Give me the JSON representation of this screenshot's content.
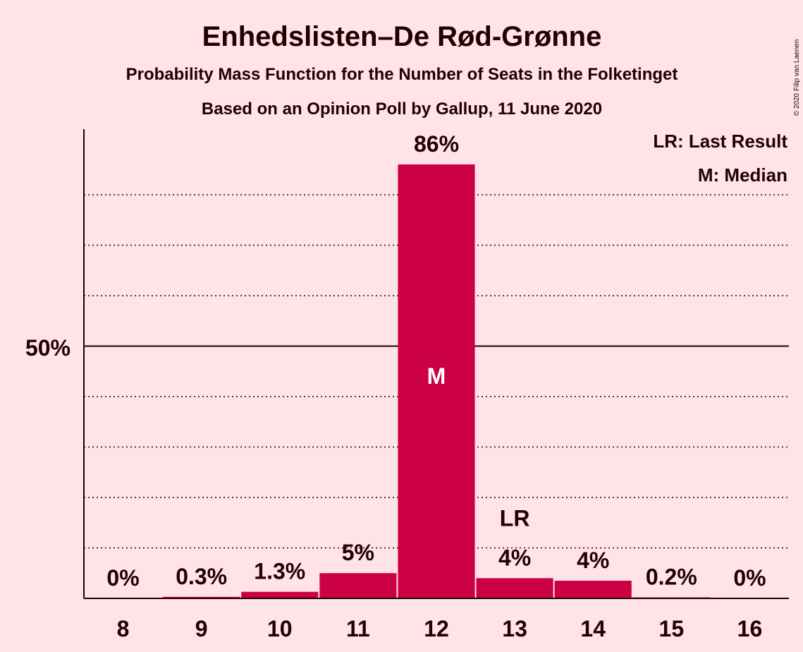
{
  "chart_data": {
    "type": "bar",
    "title": "Enhedslisten–De Rød-Grønne",
    "subtitle": "Probability Mass Function for the Number of Seats in the Folketinget",
    "subtitle2": "Based on an Opinion Poll by Gallup, 11 June 2020",
    "categories": [
      "8",
      "9",
      "10",
      "11",
      "12",
      "13",
      "14",
      "15",
      "16"
    ],
    "values": [
      0,
      0.3,
      1.3,
      5,
      86,
      4,
      3.5,
      0.2,
      0
    ],
    "labels": [
      "0%",
      "0.3%",
      "1.3%",
      "5%",
      "86%",
      "4%",
      "4%",
      "0.2%",
      "0%"
    ],
    "ylim": [
      0,
      93
    ],
    "ytick_label": "50%",
    "grid": "dotted every 10%",
    "median_category": "12",
    "median_marker": "M",
    "last_result_category": "13",
    "last_result_marker": "LR",
    "legend": [
      "LR: Last Result",
      "M: Median"
    ],
    "copyright": "© 2020 Filip van Laenen",
    "colors": {
      "bar": "#cc0044",
      "background": "#ffe3e8",
      "text": "#220000"
    }
  }
}
